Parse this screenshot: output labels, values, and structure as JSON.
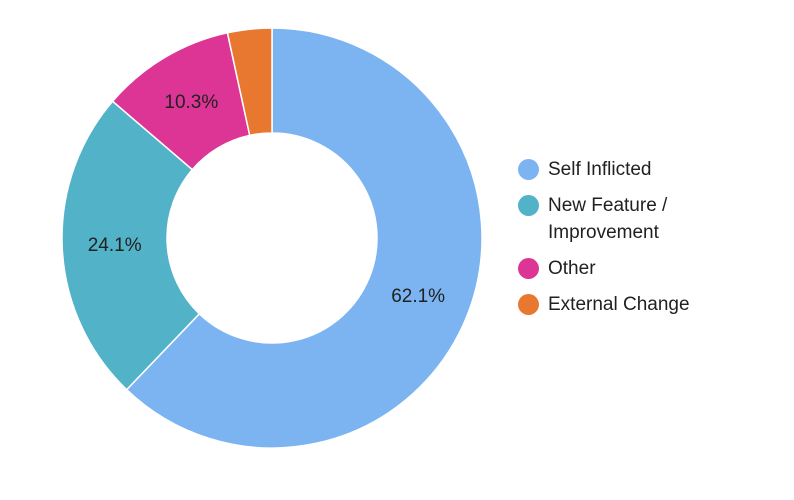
{
  "chart_data": {
    "type": "pie",
    "donut": true,
    "title": "",
    "categories": [
      "Self Inflicted",
      "New Feature / Improvement",
      "Other",
      "External Change"
    ],
    "values": [
      62.1,
      24.1,
      10.3,
      3.4
    ],
    "labels": [
      "62.1%",
      "24.1%",
      "10.3%",
      ""
    ],
    "colors": [
      "#7cb4f2",
      "#51b2c8",
      "#dd3595",
      "#e87830"
    ],
    "legend": "right"
  }
}
